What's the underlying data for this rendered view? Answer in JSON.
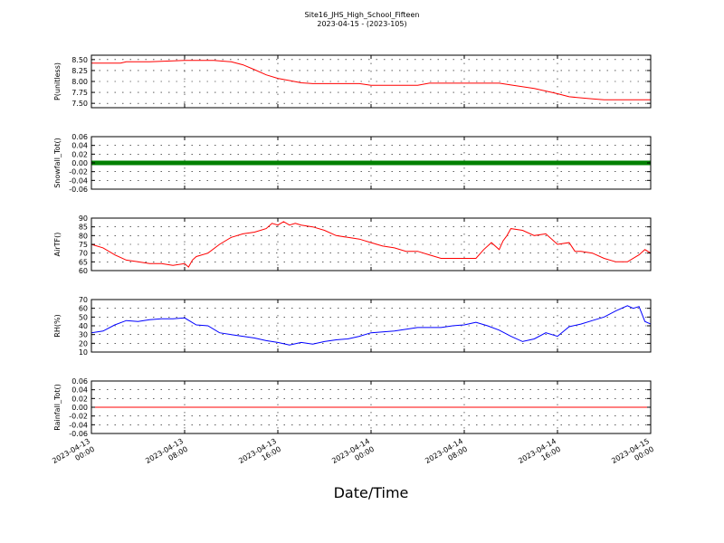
{
  "title": "Site16_JHS_High_School_Fifteen",
  "subtitle": "2023-04-15 - (2023-105)",
  "xlabel": "Date/Time",
  "x_ticks": [
    {
      "t": 0,
      "line1": "2023-04-13",
      "line2": "00:00"
    },
    {
      "t": 8,
      "line1": "2023-04-13",
      "line2": "08:00"
    },
    {
      "t": 16,
      "line1": "2023-04-13",
      "line2": "16:00"
    },
    {
      "t": 24,
      "line1": "2023-04-14",
      "line2": "00:00"
    },
    {
      "t": 32,
      "line1": "2023-04-14",
      "line2": "08:00"
    },
    {
      "t": 40,
      "line1": "2023-04-14",
      "line2": "16:00"
    },
    {
      "t": 48,
      "line1": "2023-04-15",
      "line2": "00:00"
    }
  ],
  "colors": {
    "red": "#ff0000",
    "green": "#008000",
    "blue": "#0000ff"
  },
  "chart_data": [
    {
      "type": "line",
      "ylabel": "P(unitless)",
      "xlim": [
        "2023-04-13 00:00",
        "2023-04-15 00:00"
      ],
      "ylim": [
        7.4,
        8.6
      ],
      "yticks": [
        "7.50",
        "7.75",
        "8.00",
        "8.25",
        "8.50"
      ],
      "ytick_values": [
        7.5,
        7.75,
        8.0,
        8.25,
        8.5
      ],
      "grid": true,
      "series": [
        {
          "color": "#ff0000",
          "x": [
            "2023-04-13 00:00",
            "2023-04-13 02:30",
            "2023-04-13 03:00",
            "2023-04-13 05:00",
            "2023-04-13 08:00",
            "2023-04-13 10:30",
            "2023-04-13 12:00",
            "2023-04-13 13:00",
            "2023-04-13 14:00",
            "2023-04-13 15:00",
            "2023-04-13 16:00",
            "2023-04-13 17:00",
            "2023-04-13 18:00",
            "2023-04-13 19:00",
            "2023-04-13 23:00",
            "2023-04-14 00:00",
            "2023-04-14 04:00",
            "2023-04-14 05:00",
            "2023-04-14 08:00",
            "2023-04-14 11:00",
            "2023-04-14 12:00",
            "2023-04-14 14:00",
            "2023-04-14 16:00",
            "2023-04-14 17:00",
            "2023-04-14 19:00",
            "2023-04-14 20:00",
            "2023-04-15 00:00"
          ],
          "y": [
            8.42,
            8.42,
            8.45,
            8.45,
            8.48,
            8.48,
            8.45,
            8.38,
            8.27,
            8.15,
            8.07,
            8.02,
            7.97,
            7.95,
            7.95,
            7.91,
            7.91,
            7.96,
            7.96,
            7.96,
            7.92,
            7.84,
            7.72,
            7.65,
            7.6,
            7.58,
            7.58
          ]
        }
      ]
    },
    {
      "type": "line",
      "ylabel": "Snowfall_Tot()",
      "xlim": [
        "2023-04-13 00:00",
        "2023-04-15 00:00"
      ],
      "ylim": [
        -0.06,
        0.06
      ],
      "yticks": [
        "-0.06",
        "-0.04",
        "-0.02",
        "0.00",
        "0.02",
        "0.04",
        "0.06"
      ],
      "ytick_values": [
        -0.06,
        -0.04,
        -0.02,
        0.0,
        0.02,
        0.04,
        0.06
      ],
      "grid": true,
      "markers": true,
      "series": [
        {
          "color": "#008000",
          "x": [
            "2023-04-13 00:00",
            "2023-04-15 00:00"
          ],
          "y": [
            0,
            0
          ]
        }
      ]
    },
    {
      "type": "line",
      "ylabel": "AirTF()",
      "xlim": [
        "2023-04-13 00:00",
        "2023-04-15 00:00"
      ],
      "ylim": [
        60,
        90
      ],
      "yticks": [
        "60",
        "65",
        "70",
        "75",
        "80",
        "85",
        "90"
      ],
      "ytick_values": [
        60,
        65,
        70,
        75,
        80,
        85,
        90
      ],
      "grid": true,
      "series": [
        {
          "color": "#ff0000",
          "x": [
            "2023-04-13 00:00",
            "2023-04-13 01:00",
            "2023-04-13 02:00",
            "2023-04-13 03:00",
            "2023-04-13 04:00",
            "2023-04-13 05:00",
            "2023-04-13 06:00",
            "2023-04-13 07:00",
            "2023-04-13 08:00",
            "2023-04-13 08:20",
            "2023-04-13 08:40",
            "2023-04-13 09:00",
            "2023-04-13 10:00",
            "2023-04-13 11:00",
            "2023-04-13 12:00",
            "2023-04-13 13:00",
            "2023-04-13 14:00",
            "2023-04-13 15:00",
            "2023-04-13 15:30",
            "2023-04-13 16:00",
            "2023-04-13 16:30",
            "2023-04-13 17:00",
            "2023-04-13 17:30",
            "2023-04-13 18:00",
            "2023-04-13 19:00",
            "2023-04-13 20:00",
            "2023-04-13 21:00",
            "2023-04-13 22:00",
            "2023-04-13 23:00",
            "2023-04-14 00:00",
            "2023-04-14 01:00",
            "2023-04-14 02:00",
            "2023-04-14 03:00",
            "2023-04-14 04:00",
            "2023-04-14 05:00",
            "2023-04-14 06:00",
            "2023-04-14 07:00",
            "2023-04-14 08:00",
            "2023-04-14 09:00",
            "2023-04-14 09:40",
            "2023-04-14 10:20",
            "2023-04-14 11:00",
            "2023-04-14 11:20",
            "2023-04-14 11:40",
            "2023-04-14 12:00",
            "2023-04-14 13:00",
            "2023-04-14 14:00",
            "2023-04-14 15:00",
            "2023-04-14 16:00",
            "2023-04-14 17:00",
            "2023-04-14 17:30",
            "2023-04-14 18:00",
            "2023-04-14 19:00",
            "2023-04-14 20:00",
            "2023-04-14 21:00",
            "2023-04-14 22:00",
            "2023-04-14 23:00",
            "2023-04-14 23:30",
            "2023-04-15 00:00"
          ],
          "y": [
            75,
            73,
            69,
            66,
            65,
            64,
            64,
            63,
            64,
            62,
            66,
            68,
            70,
            75,
            79,
            81,
            82,
            84,
            87,
            86,
            88,
            86,
            87,
            86,
            85,
            83,
            80,
            79,
            78,
            76,
            74,
            73,
            71,
            71,
            69,
            67,
            67,
            67,
            67,
            72,
            76,
            72,
            77,
            80,
            84,
            83,
            80,
            81,
            75,
            76,
            71,
            71,
            70,
            67,
            65,
            65,
            69,
            72,
            70
          ]
        }
      ]
    },
    {
      "type": "line",
      "ylabel": "RH(%)",
      "xlim": [
        "2023-04-13 00:00",
        "2023-04-15 00:00"
      ],
      "ylim": [
        10,
        70
      ],
      "yticks": [
        "10",
        "20",
        "30",
        "40",
        "50",
        "60",
        "70"
      ],
      "ytick_values": [
        10,
        20,
        30,
        40,
        50,
        60,
        70
      ],
      "grid": true,
      "series": [
        {
          "color": "#0000ff",
          "x": [
            "2023-04-13 00:00",
            "2023-04-13 01:00",
            "2023-04-13 02:00",
            "2023-04-13 03:00",
            "2023-04-13 04:00",
            "2023-04-13 05:00",
            "2023-04-13 06:00",
            "2023-04-13 07:00",
            "2023-04-13 08:00",
            "2023-04-13 09:00",
            "2023-04-13 10:00",
            "2023-04-13 11:00",
            "2023-04-13 12:00",
            "2023-04-13 13:00",
            "2023-04-13 14:00",
            "2023-04-13 15:00",
            "2023-04-13 16:00",
            "2023-04-13 17:00",
            "2023-04-13 18:00",
            "2023-04-13 19:00",
            "2023-04-13 20:00",
            "2023-04-13 21:00",
            "2023-04-13 22:00",
            "2023-04-13 23:00",
            "2023-04-14 00:00",
            "2023-04-14 02:00",
            "2023-04-14 04:00",
            "2023-04-14 06:00",
            "2023-04-14 07:00",
            "2023-04-14 08:00",
            "2023-04-14 09:00",
            "2023-04-14 10:00",
            "2023-04-14 11:00",
            "2023-04-14 12:00",
            "2023-04-14 13:00",
            "2023-04-14 14:00",
            "2023-04-14 15:00",
            "2023-04-14 16:00",
            "2023-04-14 17:00",
            "2023-04-14 18:00",
            "2023-04-14 19:00",
            "2023-04-14 20:00",
            "2023-04-14 21:00",
            "2023-04-14 22:00",
            "2023-04-14 22:30",
            "2023-04-14 23:00",
            "2023-04-14 23:30",
            "2023-04-15 00:00"
          ],
          "y": [
            32,
            34,
            41,
            46,
            45,
            47,
            48,
            48,
            49,
            41,
            40,
            32,
            30,
            28,
            26,
            23,
            21,
            18,
            21,
            19,
            22,
            24,
            25,
            28,
            32,
            34,
            38,
            38,
            40,
            41,
            44,
            40,
            35,
            28,
            22,
            25,
            32,
            28,
            39,
            42,
            46,
            50,
            57,
            63,
            60,
            62,
            45,
            42
          ]
        }
      ]
    },
    {
      "type": "line",
      "ylabel": "Rainfall_Tot()",
      "xlim": [
        "2023-04-13 00:00",
        "2023-04-15 00:00"
      ],
      "ylim": [
        -0.06,
        0.06
      ],
      "yticks": [
        "-0.06",
        "-0.04",
        "-0.02",
        "0.00",
        "0.02",
        "0.04",
        "0.06"
      ],
      "ytick_values": [
        -0.06,
        -0.04,
        -0.02,
        0.0,
        0.02,
        0.04,
        0.06
      ],
      "grid": true,
      "series": [
        {
          "color": "#ff0000",
          "x": [
            "2023-04-13 00:00",
            "2023-04-15 00:00"
          ],
          "y": [
            0,
            0
          ]
        }
      ]
    }
  ]
}
